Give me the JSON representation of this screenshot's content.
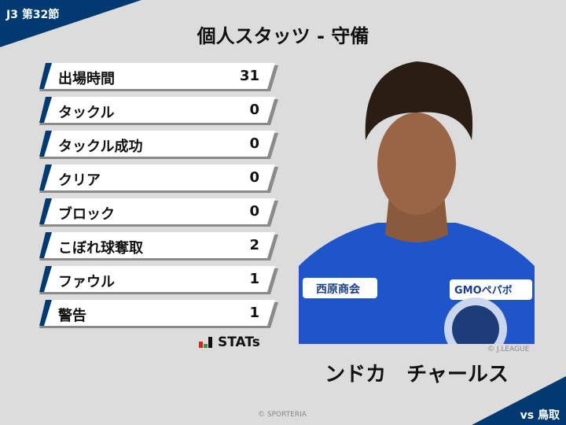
{
  "header": {
    "round": "J3 第32節",
    "title": "個人スタッツ - 守備"
  },
  "stats": [
    {
      "label": "出場時間",
      "value": "31"
    },
    {
      "label": "タックル",
      "value": "0"
    },
    {
      "label": "タックル成功",
      "value": "0"
    },
    {
      "label": "クリア",
      "value": "0"
    },
    {
      "label": "ブロック",
      "value": "0"
    },
    {
      "label": "こぼれ球奪取",
      "value": "2"
    },
    {
      "label": "ファウル",
      "value": "1"
    },
    {
      "label": "警告",
      "value": "1"
    }
  ],
  "logo": {
    "text": "STATs"
  },
  "player": {
    "name": "ンドカ　チャールス",
    "photo_credit": "© J.LEAGUE",
    "jersey_text": [
      "西原商会",
      "GMOペパボ"
    ]
  },
  "footer": {
    "credit": "© SPORTERIA",
    "opponent": "vs 鳥取"
  },
  "colors": {
    "navy": "#003a70",
    "jersey": "#1f55c8"
  }
}
